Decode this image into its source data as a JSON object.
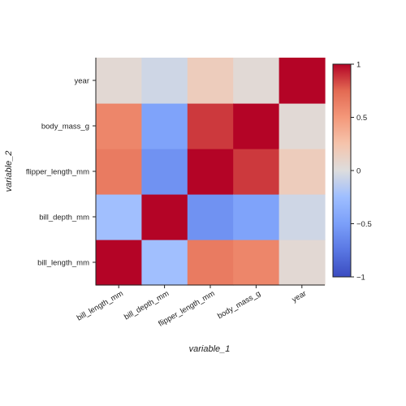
{
  "chart_data": {
    "type": "heatmap",
    "xlabel": "variable_1",
    "ylabel": "variable_2",
    "variables": [
      "bill_length_mm",
      "bill_depth_mm",
      "flipper_length_mm",
      "body_mass_g",
      "year"
    ],
    "values": [
      [
        1.0,
        -0.24,
        0.66,
        0.6,
        0.05
      ],
      [
        -0.24,
        1.0,
        -0.58,
        -0.47,
        -0.06
      ],
      [
        0.66,
        -0.58,
        1.0,
        0.87,
        0.17
      ],
      [
        0.6,
        -0.47,
        0.87,
        1.0,
        0.04
      ],
      [
        0.05,
        -0.06,
        0.17,
        0.04,
        1.0
      ]
    ],
    "colorbar": {
      "min": -1,
      "max": 1,
      "ticks": [
        1,
        0.5,
        0,
        -0.5,
        -1
      ],
      "tick_labels": [
        "1",
        "0.5",
        "0",
        "−0.5",
        "−1"
      ],
      "colormap": "coolwarm",
      "colors": {
        "low": "#3b4cc0",
        "mid": "#dddddd",
        "high": "#b40426"
      }
    },
    "grid": false,
    "legend": "right"
  }
}
